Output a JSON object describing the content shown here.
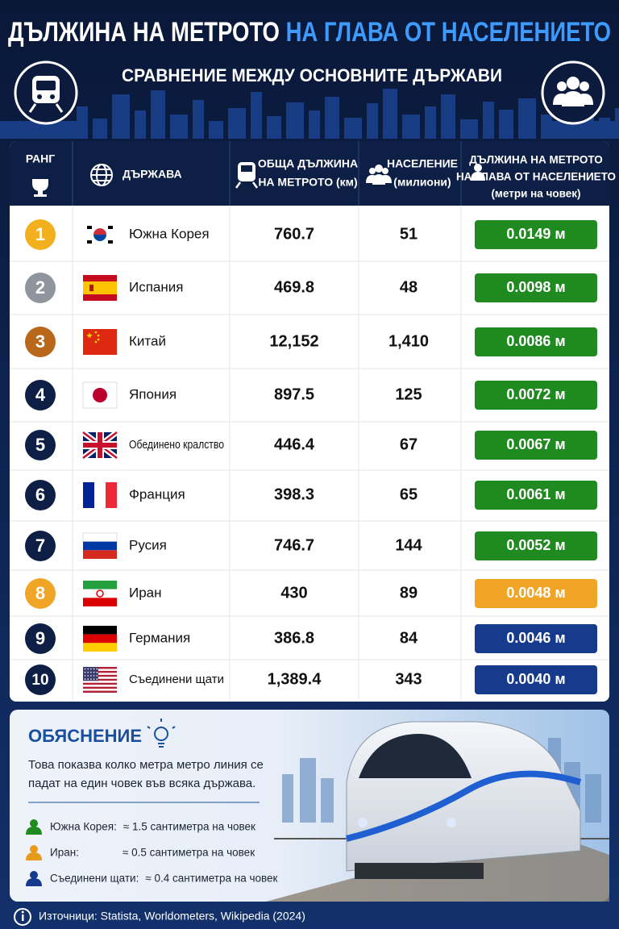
{
  "header": {
    "title_part1": "ДЪЛЖИНА НА МЕТРОТО",
    "title_part2": "НА ГЛАВА ОТ НАСЕЛЕНИЕТО",
    "subtitle": "СРАВНЕНИЕ МЕЖДУ ОСНОВНИТЕ ДЪРЖАВИ"
  },
  "table": {
    "columns": [
      [
        "РАНГ"
      ],
      [
        "ДЪРЖАВА"
      ],
      [
        "ОБЩА ДЪЛЖИНА",
        "НА МЕТРОТО (км)"
      ],
      [
        "НАСЕЛЕНИЕ",
        "(милиони)"
      ],
      [
        "ДЪЛЖИНА НА МЕТРОТО",
        "НА ГЛАВА ОТ НАСЕЛЕНИЕТО",
        "(метри на човек)"
      ]
    ],
    "rows": [
      {
        "rank": "1",
        "country": "Южна Корея",
        "length": "760.7",
        "population": "51",
        "per_capita": "0.0149 м",
        "rank_color": "#f2b01e",
        "badge_color": "#1f8a1f"
      },
      {
        "rank": "2",
        "country": "Испания",
        "length": "469.8",
        "population": "48",
        "per_capita": "0.0098 м",
        "rank_color": "#8e959c",
        "badge_color": "#1f8a1f"
      },
      {
        "rank": "3",
        "country": "Китай",
        "length": "12,152",
        "population": "1,410",
        "per_capita": "0.0086 м",
        "rank_color": "#b8671b",
        "badge_color": "#1f8a1f"
      },
      {
        "rank": "4",
        "country": "Япония",
        "length": "897.5",
        "population": "125",
        "per_capita": "0.0072 м",
        "rank_color": "#0e1f45",
        "badge_color": "#1f8a1f"
      },
      {
        "rank": "5",
        "country": "Обединено кралство",
        "length": "446.4",
        "population": "67",
        "per_capita": "0.0067 м",
        "rank_color": "#0e1f45",
        "badge_color": "#1f8a1f"
      },
      {
        "rank": "6",
        "country": "Франция",
        "length": "398.3",
        "population": "65",
        "per_capita": "0.0061 м",
        "rank_color": "#0e1f45",
        "badge_color": "#1f8a1f"
      },
      {
        "rank": "7",
        "country": "Русия",
        "length": "746.7",
        "population": "144",
        "per_capita": "0.0052 м",
        "rank_color": "#0e1f45",
        "badge_color": "#1f8a1f"
      },
      {
        "rank": "8",
        "country": "Иран",
        "length": "430",
        "population": "89",
        "per_capita": "0.0048 м",
        "rank_color": "#f0a526",
        "badge_color": "#f0a526"
      },
      {
        "rank": "9",
        "country": "Германия",
        "length": "386.8",
        "population": "84",
        "per_capita": "0.0046 м",
        "rank_color": "#0e1f45",
        "badge_color": "#163b8c"
      },
      {
        "rank": "10",
        "country": "Съединени щати",
        "length": "1,389.4",
        "population": "343",
        "per_capita": "0.0040 м",
        "rank_color": "#0e1f45",
        "badge_color": "#163b8c"
      }
    ]
  },
  "explanation": {
    "title": "ОБЯСНЕНИЕ",
    "text": "Това показва колко метра метро линия се падат на един човек във всяка държава.",
    "items": [
      {
        "label": "Южна Корея:",
        "value": "≈ 1.5 сантиметра на човек",
        "color": "#1f8a1f"
      },
      {
        "label": "Иран:",
        "value": "≈ 0.5 сантиметра на човек",
        "color": "#e89a1c"
      },
      {
        "label": "Съединени щати:",
        "value": "≈ 0.4 сантиметра на човек",
        "color": "#163b8c"
      }
    ]
  },
  "source": "Източници: Statista, Worldometers, Wikipedia (2024)"
}
